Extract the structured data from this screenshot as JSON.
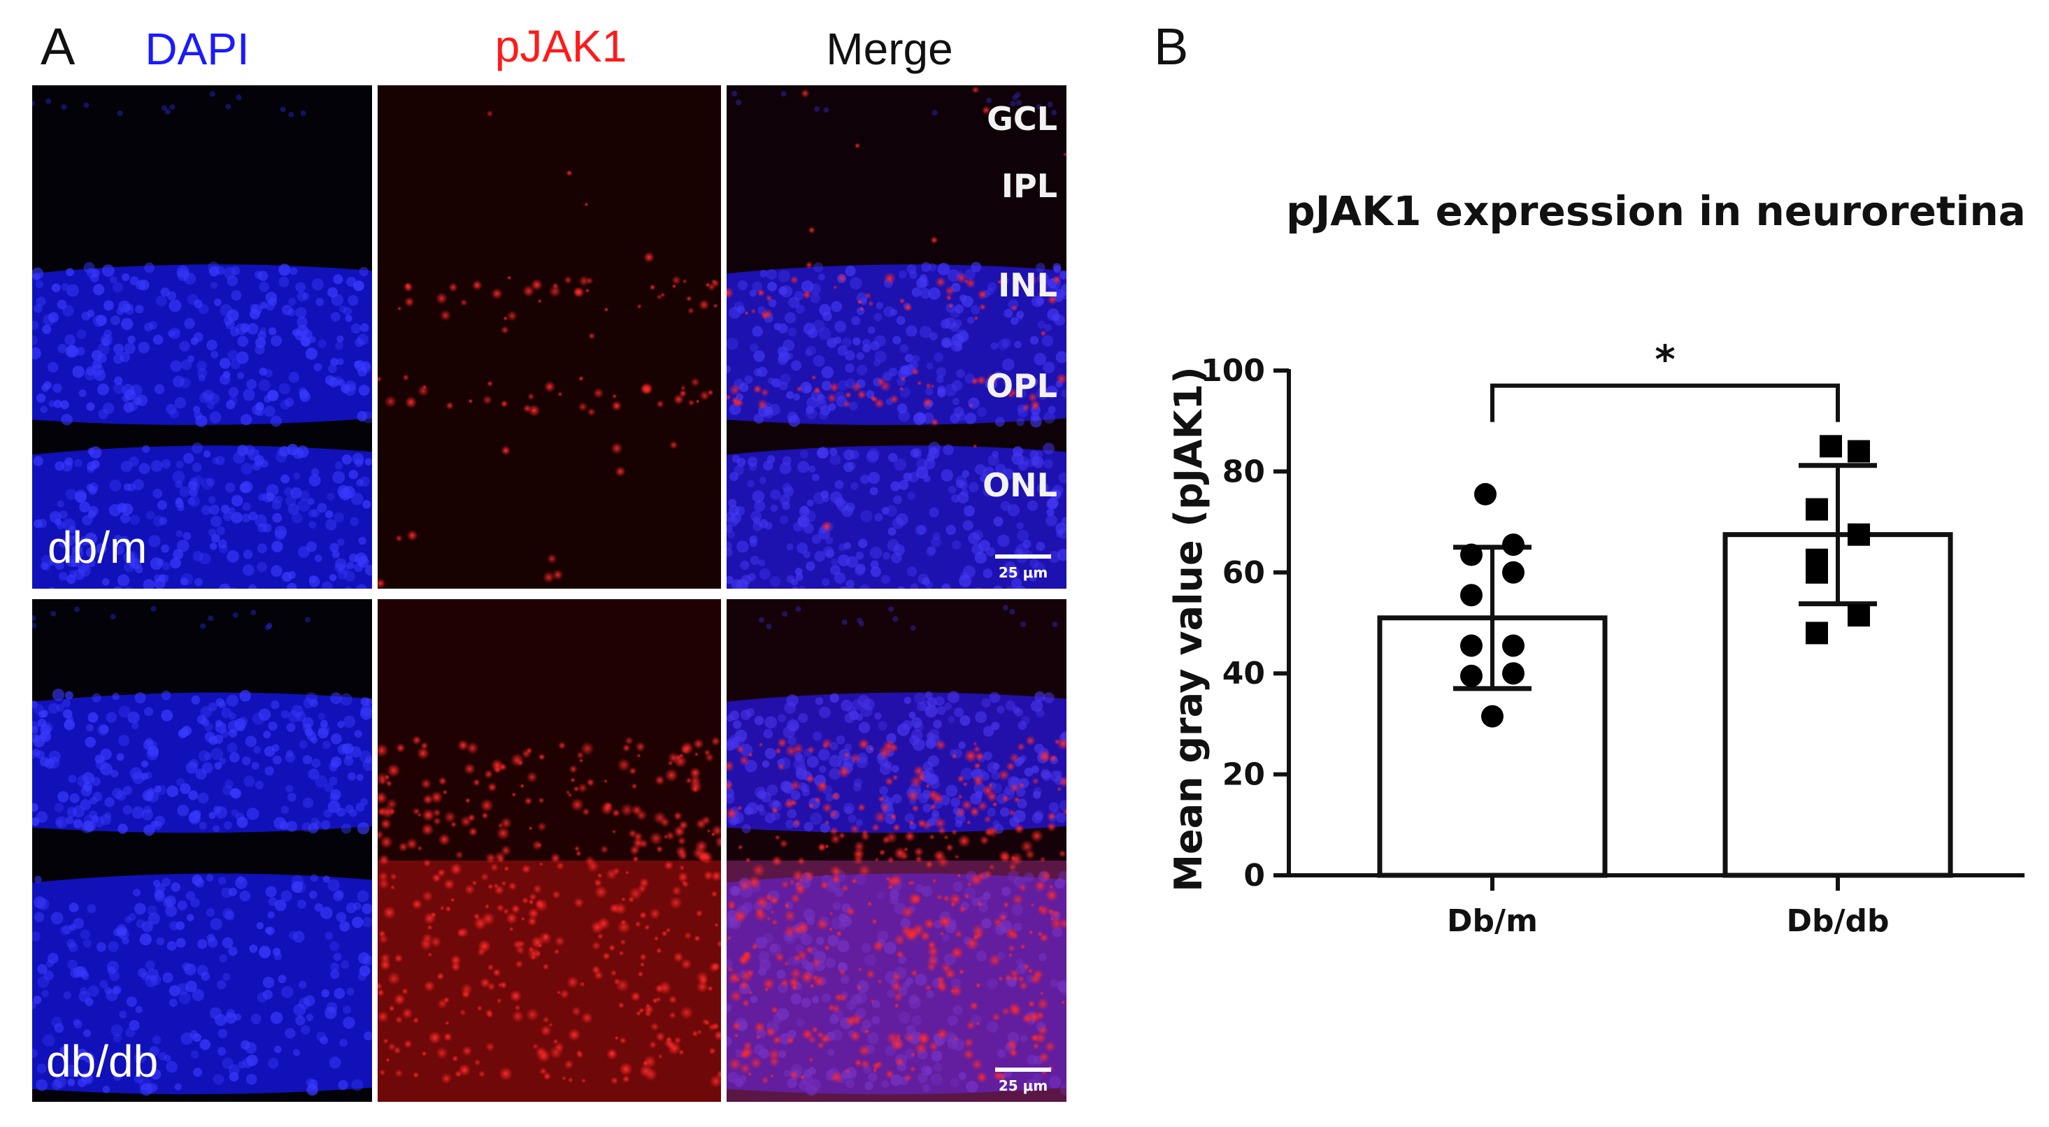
{
  "panel_a": {
    "letter": "A",
    "columns": [
      {
        "label": "DAPI",
        "color": "#1a1aff"
      },
      {
        "label": "pJAK1",
        "color": "#ff1a1a"
      },
      {
        "label": "Merge",
        "color": "#111111"
      }
    ],
    "rows": [
      "db/m",
      "db/db"
    ],
    "layers": [
      "GCL",
      "IPL",
      "INL",
      "OPL",
      "ONL"
    ],
    "scale_bar": "25 μm",
    "channel_colors": {
      "dapi": "#1414d8",
      "pjak1": "#e01414",
      "background": "#020208"
    }
  },
  "panel_b": {
    "letter": "B",
    "chart_data": {
      "type": "bar",
      "title": "pJAK1 expression in neuroretina",
      "xlabel": "",
      "ylabel": "Mean  gray  value (pJAK1)",
      "ylim": [
        0,
        100
      ],
      "yticks": [
        0,
        20,
        40,
        60,
        80,
        100
      ],
      "categories": [
        "Db/m",
        "Db/db"
      ],
      "values": [
        51,
        67.5
      ],
      "error": [
        14,
        13.7
      ],
      "grid": false,
      "points": [
        {
          "category": "Db/m",
          "marker": "circle",
          "values": [
            75.5,
            65.5,
            63.5,
            60,
            55.5,
            45.5,
            45.5,
            39.5,
            40,
            31.5
          ]
        },
        {
          "category": "Db/db",
          "marker": "square",
          "values": [
            85,
            84,
            72.5,
            67.5,
            62.5,
            60,
            51.5,
            48
          ]
        }
      ],
      "significance": {
        "between": [
          "Db/m",
          "Db/db"
        ],
        "label": "*",
        "at": 97
      }
    }
  }
}
